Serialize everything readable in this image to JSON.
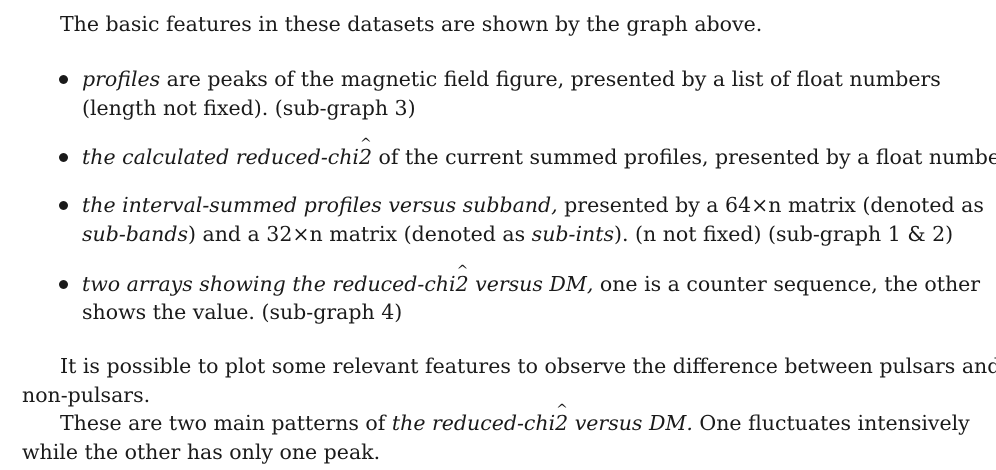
{
  "intro": "The basic features in these datasets are shown by the graph above.",
  "bullets": [
    {
      "l1_term": "profiles",
      "l1_rest": " are peaks of the magnetic field figure, presented by a list of float numbers",
      "l2": "(length not fixed). (sub-graph 3)"
    },
    {
      "l1_term_a": "the calculated reduced-chi",
      "l1_term_hat": "2",
      "l1_rest": " of the current summed profiles, presented by a float number."
    },
    {
      "l1_term": "the interval-summed profiles versus subband,",
      "l1_rest": " presented by a 64×n matrix (denoted as",
      "l2_term_a": "sub-bands",
      "l2_mid": ") and a 32×n matrix (denoted as ",
      "l2_term_b": "sub-ints",
      "l2_rest": "). (n not fixed) (sub-graph 1 & 2)"
    },
    {
      "l1_term_a": "two arrays showing the reduced-chi",
      "l1_term_hat": "2",
      "l1_term_b": " versus DM,",
      "l1_rest": " one is a counter sequence, the other",
      "l2": "shows the value. (sub-graph 4)"
    }
  ],
  "para2": {
    "l1": "It is possible to plot some relevant features to observe the difference between pulsars and",
    "l2": "non-pulsars."
  },
  "para3": {
    "l1_start": "These are two main patterns of ",
    "l1_term_a": "the reduced-chi",
    "l1_term_hat": "2",
    "l1_term_b": " versus DM.",
    "l1_rest": " One fluctuates intensively",
    "l2": "while the other has only one peak."
  }
}
